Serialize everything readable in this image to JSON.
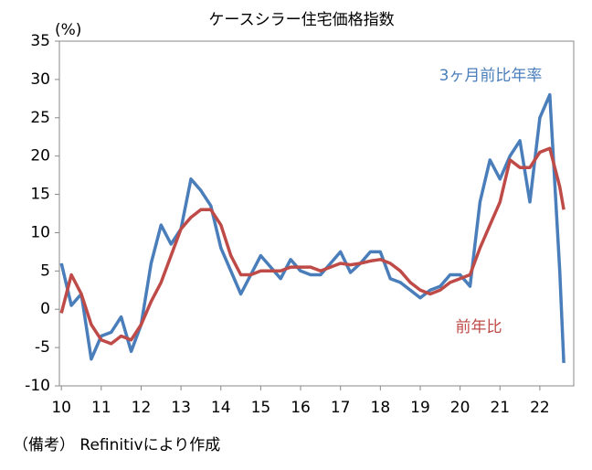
{
  "chart_data": {
    "type": "line",
    "title": "ケースシラー住宅価格指数",
    "y_label": "(%)",
    "note": "（備考） Refinitivにより作成",
    "x": [
      10,
      10.25,
      10.5,
      10.75,
      11,
      11.25,
      11.5,
      11.75,
      12,
      12.25,
      12.5,
      12.75,
      13,
      13.25,
      13.5,
      13.75,
      14,
      14.25,
      14.5,
      14.75,
      15,
      15.25,
      15.5,
      15.75,
      16,
      16.25,
      16.5,
      16.75,
      17,
      17.25,
      17.5,
      17.75,
      18,
      18.25,
      18.5,
      18.75,
      19,
      19.25,
      19.5,
      19.75,
      20,
      20.25,
      20.5,
      20.75,
      21,
      21.25,
      21.5,
      21.75,
      22,
      22.25,
      22.5,
      22.6
    ],
    "series": [
      {
        "name": "3ヶ月前比年率",
        "color": "#4a7ebb",
        "values": [
          6,
          0.5,
          2,
          -6.5,
          -3.5,
          -3,
          -1,
          -5.5,
          -2,
          6,
          11,
          8.5,
          10.5,
          17,
          15.5,
          13.5,
          8,
          5,
          2,
          4.5,
          7,
          5.5,
          4,
          6.5,
          5,
          4.5,
          4.5,
          6,
          7.5,
          4.8,
          6,
          7.5,
          7.5,
          4,
          3.5,
          2.5,
          1.5,
          2.5,
          3,
          4.5,
          4.5,
          3,
          14,
          19.5,
          17,
          20,
          22,
          14,
          25,
          28,
          5,
          -7
        ]
      },
      {
        "name": "前年比",
        "color": "#be4b48",
        "values": [
          -0.5,
          4.5,
          2,
          -2,
          -4,
          -4.5,
          -3.5,
          -4,
          -2,
          1,
          3.5,
          7,
          10.5,
          12,
          13,
          13,
          11,
          7,
          4.5,
          4.5,
          5,
          5,
          5,
          5.5,
          5.5,
          5.5,
          5,
          5.5,
          6,
          5.8,
          6,
          6.3,
          6.5,
          6,
          5,
          3.5,
          2.5,
          2,
          2.5,
          3.5,
          4,
          4.5,
          8,
          11,
          14,
          19.5,
          18.5,
          18.5,
          20.5,
          21,
          16,
          13
        ]
      }
    ],
    "xlim": [
      9.95,
      22.85
    ],
    "xticks": [
      10,
      11,
      12,
      13,
      14,
      15,
      16,
      17,
      18,
      19,
      20,
      21,
      22
    ],
    "ylim": [
      -10,
      35
    ],
    "yticks": [
      -10,
      -5,
      0,
      5,
      10,
      15,
      20,
      25,
      30,
      35
    ],
    "grid": false
  }
}
